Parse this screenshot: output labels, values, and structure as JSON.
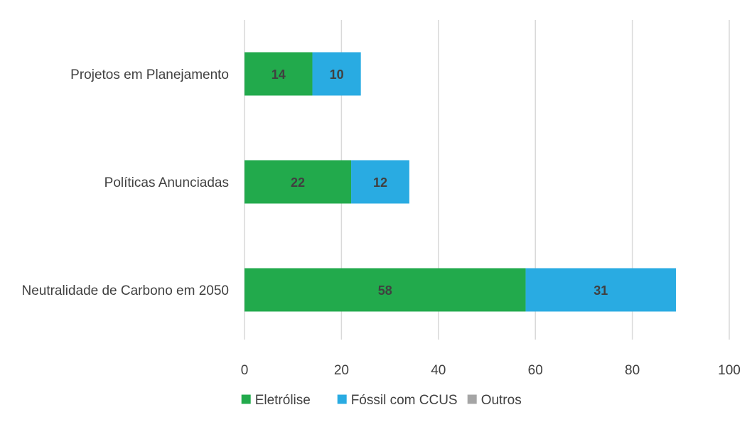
{
  "chart_data": {
    "type": "bar",
    "orientation": "horizontal",
    "stacked": true,
    "categories": [
      "Projetos em Planejamento",
      "Políticas Anunciadas",
      "Neutralidade de Carbono em 2050"
    ],
    "series": [
      {
        "name": "Eletrólise",
        "values": [
          14,
          22,
          58
        ],
        "color": "#22AA4C"
      },
      {
        "name": "Fóssil com CCUS",
        "values": [
          10,
          12,
          31
        ],
        "color": "#29ABE2"
      },
      {
        "name": "Outros",
        "values": [
          0,
          0,
          0
        ],
        "color": "#A5A5A5"
      }
    ],
    "xlim": [
      0,
      100
    ],
    "xticks": [
      0,
      20,
      40,
      60,
      80,
      100
    ],
    "grid": "vertical",
    "legend_position": "bottom",
    "title": "",
    "xlabel": "",
    "ylabel": ""
  }
}
